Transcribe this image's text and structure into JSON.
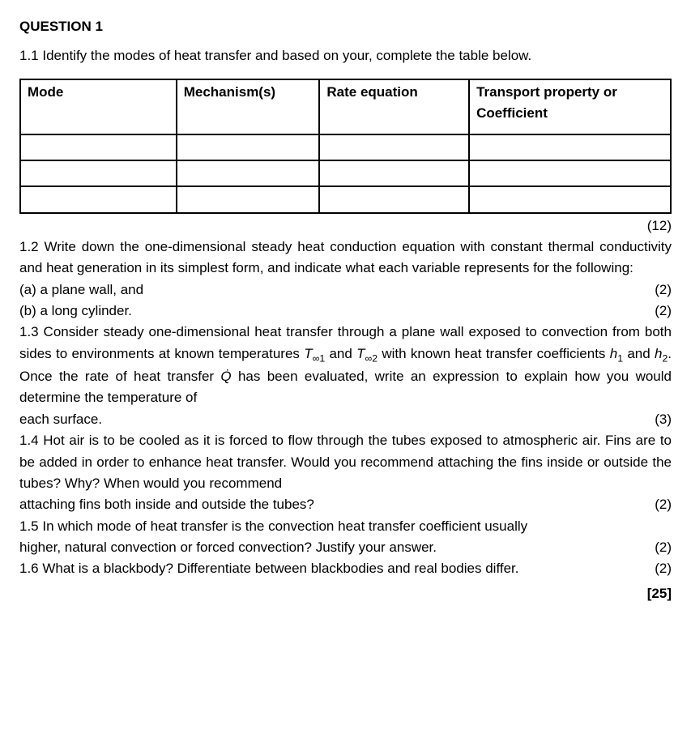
{
  "title": "QUESTION 1",
  "q11_intro": "1.1 Identify the modes of heat transfer and based on your, complete the table below.",
  "table": {
    "headers": [
      "Mode",
      "Mechanism(s)",
      "Rate equation",
      "Transport property or Coefficient"
    ],
    "col_widths": [
      "24%",
      "22%",
      "23%",
      "31%"
    ],
    "empty_rows": 3
  },
  "q11_marks": "(12)",
  "q12": {
    "text": "1.2 Write down the one-dimensional steady heat conduction equation with constant thermal conductivity and heat generation in its simplest form, and indicate what each variable represents for the following:",
    "a_label": "(a) a plane wall, and",
    "a_marks": "(2)",
    "b_label": "(b) a long cylinder.",
    "b_marks": "(2)"
  },
  "q13": {
    "pre": "1.3 Consider steady one-dimensional heat transfer through a plane wall exposed to convection from both sides to environments at known temperatures ",
    "T1_sym": "T",
    "T1_sub": "∞1",
    "and1": " and ",
    "T2_sym": "T",
    "T2_sub": "∞2",
    "mid1": " with known heat transfer coefficients ",
    "h1_sym": "h",
    "h1_sub": "1",
    "and2": " and ",
    "h2_sym": "h",
    "h2_sub": "2",
    "mid2": ". Once the rate of heat transfer ",
    "Q_sym": "Q̇",
    "post": " has been evaluated, write an expression to explain how you would determine the temperature of",
    "lastline_left": "each surface.",
    "marks": "(3)"
  },
  "q14": {
    "text": "1.4 Hot air is to be cooled as it is forced to flow through the tubes exposed to atmospheric air. Fins are to be added in order to enhance heat transfer. Would you recommend attaching the fins inside or outside the tubes? Why? When would you recommend",
    "lastline_left": "attaching fins both inside and outside the tubes?",
    "marks": "(2)"
  },
  "q15": {
    "text": "1.5 In which mode of heat transfer is the convection heat transfer coefficient usually",
    "lastline_left": "higher, natural convection or forced convection? Justify your answer.",
    "marks": "(2)"
  },
  "q16": {
    "left": "1.6 What is a blackbody? Differentiate between blackbodies and real bodies differ.",
    "marks": "(2)"
  },
  "total": "[25]"
}
